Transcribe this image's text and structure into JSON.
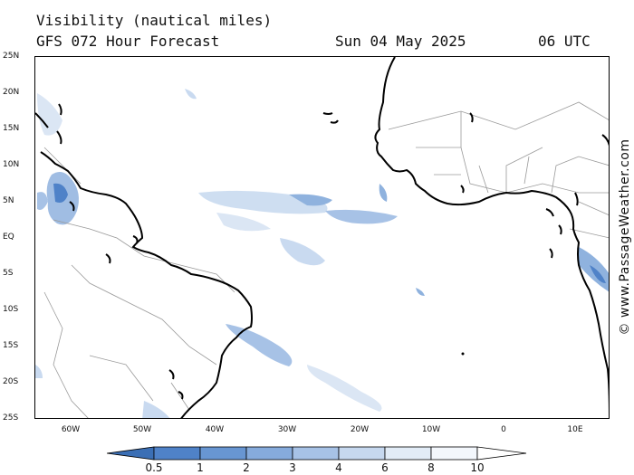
{
  "title_line1": "Visibility (nautical miles)",
  "title_line2": "GFS 072 Hour Forecast",
  "date": "Sun 04 May 2025",
  "time": "06 UTC",
  "copyright": "© www.PassageWeather.com",
  "colors": {
    "land_line": "#000000",
    "border_line": "#9a9a9a",
    "lowvis_dark": "#4f82c8",
    "lowvis_mid": "#8fb2de",
    "lowvis_light": "#c9daf0"
  },
  "map": {
    "lat_labels": [
      "25N",
      "20N",
      "15N",
      "10N",
      "5N",
      "EQ",
      "5S",
      "10S",
      "15S",
      "20S",
      "25S"
    ],
    "lon_labels": [
      "60W",
      "50W",
      "40W",
      "30W",
      "20W",
      "10W",
      "0",
      "10E"
    ]
  },
  "legend": {
    "labels": [
      "0.5",
      "1",
      "2",
      "3",
      "4",
      "6",
      "8",
      "10"
    ],
    "colors": [
      "#3b6fb5",
      "#4f82c8",
      "#6896d2",
      "#86abdc",
      "#a7c2e6",
      "#c6d8ef",
      "#e2ecf7",
      "#f3f7fc",
      "#ffffff"
    ]
  }
}
